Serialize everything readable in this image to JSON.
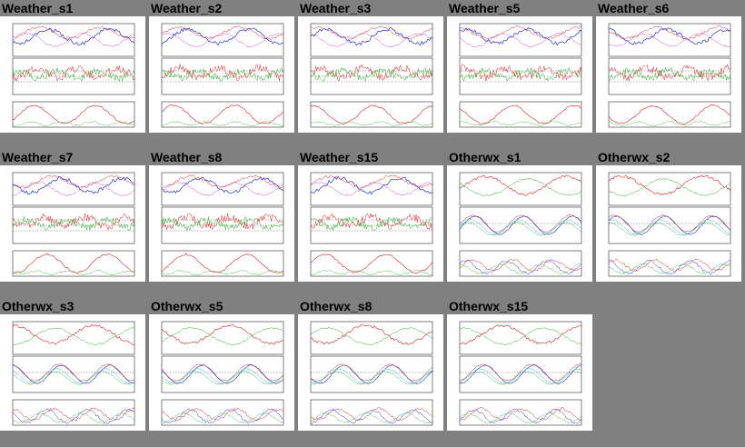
{
  "thumbnails": [
    {
      "label": "Weather_s1"
    },
    {
      "label": "Weather_s2"
    },
    {
      "label": "Weather_s3"
    },
    {
      "label": "Weather_s5"
    },
    {
      "label": "Weather_s6"
    },
    {
      "label": "Weather_s7"
    },
    {
      "label": "Weather_s8"
    },
    {
      "label": "Weather_s15"
    },
    {
      "label": "Otherwx_s1"
    },
    {
      "label": "Otherwx_s2"
    },
    {
      "label": "Otherwx_s3"
    },
    {
      "label": "Otherwx_s5"
    },
    {
      "label": "Otherwx_s8"
    },
    {
      "label": "Otherwx_s15"
    }
  ],
  "colors": {
    "background": "#808080",
    "thumb_bg": "#ffffff",
    "red": "#e02020",
    "green": "#20b020",
    "blue": "#2030e0",
    "cyan": "#20c8e0",
    "magenta": "#c020c0"
  }
}
